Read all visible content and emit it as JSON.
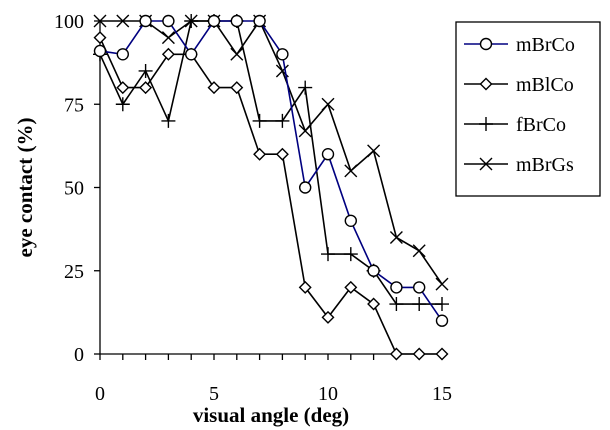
{
  "chart_data": {
    "type": "line",
    "xlabel": "visual angle (deg)",
    "ylabel": "eye contact (%)",
    "xlim": [
      0,
      15
    ],
    "ylim": [
      0,
      100
    ],
    "xticks": [
      "0",
      "5",
      "10",
      "15"
    ],
    "yticks": [
      "0",
      "25",
      "50",
      "75",
      "100"
    ],
    "grid": false,
    "legend_position": "right",
    "x": [
      0,
      1,
      2,
      3,
      4,
      5,
      6,
      7,
      8,
      9,
      10,
      11,
      12,
      13,
      14,
      15
    ],
    "series": [
      {
        "name": "mBrCo",
        "marker": "circle",
        "color": "#000080",
        "values": [
          91,
          90,
          100,
          100,
          90,
          100,
          100,
          100,
          90,
          50,
          60,
          40,
          25,
          20,
          20,
          10
        ]
      },
      {
        "name": "mBlCo",
        "marker": "diamond",
        "color": "#000000",
        "values": [
          95,
          80,
          80,
          90,
          90,
          80,
          80,
          60,
          60,
          20,
          11,
          20,
          15,
          0,
          0,
          0
        ]
      },
      {
        "name": "fBrCo",
        "marker": "plus",
        "color": "#000000",
        "values": [
          90,
          75,
          85,
          70,
          100,
          100,
          100,
          70,
          70,
          80,
          30,
          30,
          25,
          15,
          15,
          15
        ]
      },
      {
        "name": "mBrGs",
        "marker": "cross",
        "color": "#000000",
        "values": [
          100,
          100,
          100,
          95,
          100,
          100,
          90,
          100,
          85,
          67,
          75,
          55,
          61,
          35,
          31,
          21
        ]
      }
    ]
  }
}
